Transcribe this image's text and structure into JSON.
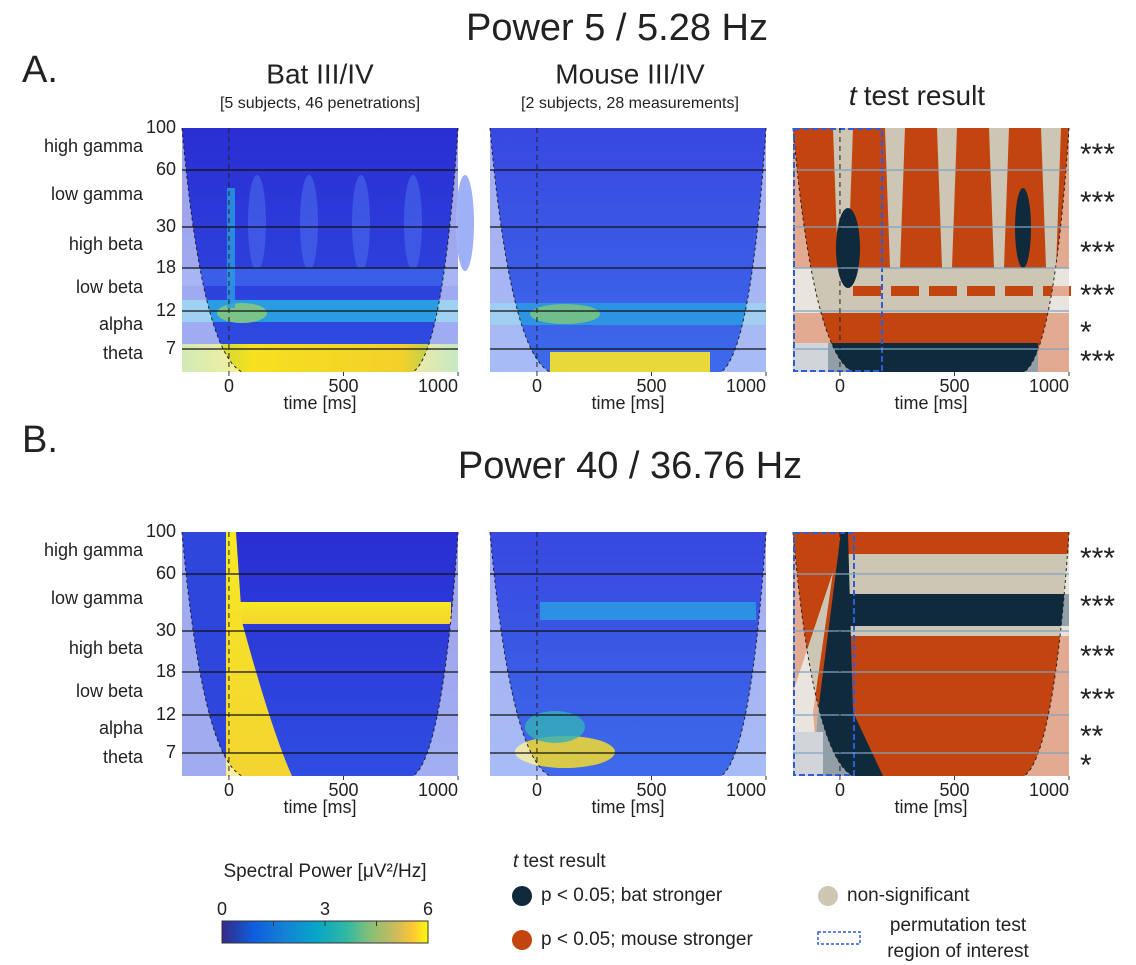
{
  "figure": {
    "rows": [
      {
        "letter": "A.",
        "title": "Power 5 / 5.28 Hz",
        "significance": [
          "***",
          "***",
          "***",
          "***",
          "*",
          "***"
        ]
      },
      {
        "letter": "B.",
        "title": "Power 40 / 36.76 Hz",
        "significance": [
          "***",
          "***",
          "***",
          "***",
          "**",
          "*"
        ]
      }
    ],
    "columns": [
      {
        "title": "Bat III/IV",
        "subtitle": "[5 subjects, 46 penetrations]"
      },
      {
        "title": "Mouse III/IV",
        "subtitle": "[2 subjects, 28 measurements]"
      },
      {
        "title_italic": "t",
        "title": "test result"
      }
    ],
    "x_axis": {
      "label": "time [ms]",
      "xlim": [
        -205,
        1000
      ],
      "xticks": [
        0,
        500,
        1000
      ]
    },
    "y_axis": {
      "yticks": [
        100,
        60,
        30,
        18,
        12,
        7
      ],
      "bands": [
        "high gamma",
        "low gamma",
        "high beta",
        "low beta",
        "alpha",
        "theta"
      ]
    },
    "colorbar": {
      "label": "Spectral Power [μV²/Hz]",
      "lim": [
        0,
        6
      ],
      "ticks": [
        0,
        3,
        6
      ]
    },
    "legend": {
      "title_italic": "t",
      "title": "test result",
      "items": [
        {
          "label": "p < 0.05; bat stronger",
          "color": "#0e2a3c"
        },
        {
          "label": "p < 0.05; mouse stronger",
          "color": "#c2440f"
        },
        {
          "label": "non-significant",
          "color": "#cec6b5"
        },
        {
          "label": [
            "permutation test",
            "region of interest"
          ],
          "color": "#2f5bd6"
        }
      ]
    }
  }
}
